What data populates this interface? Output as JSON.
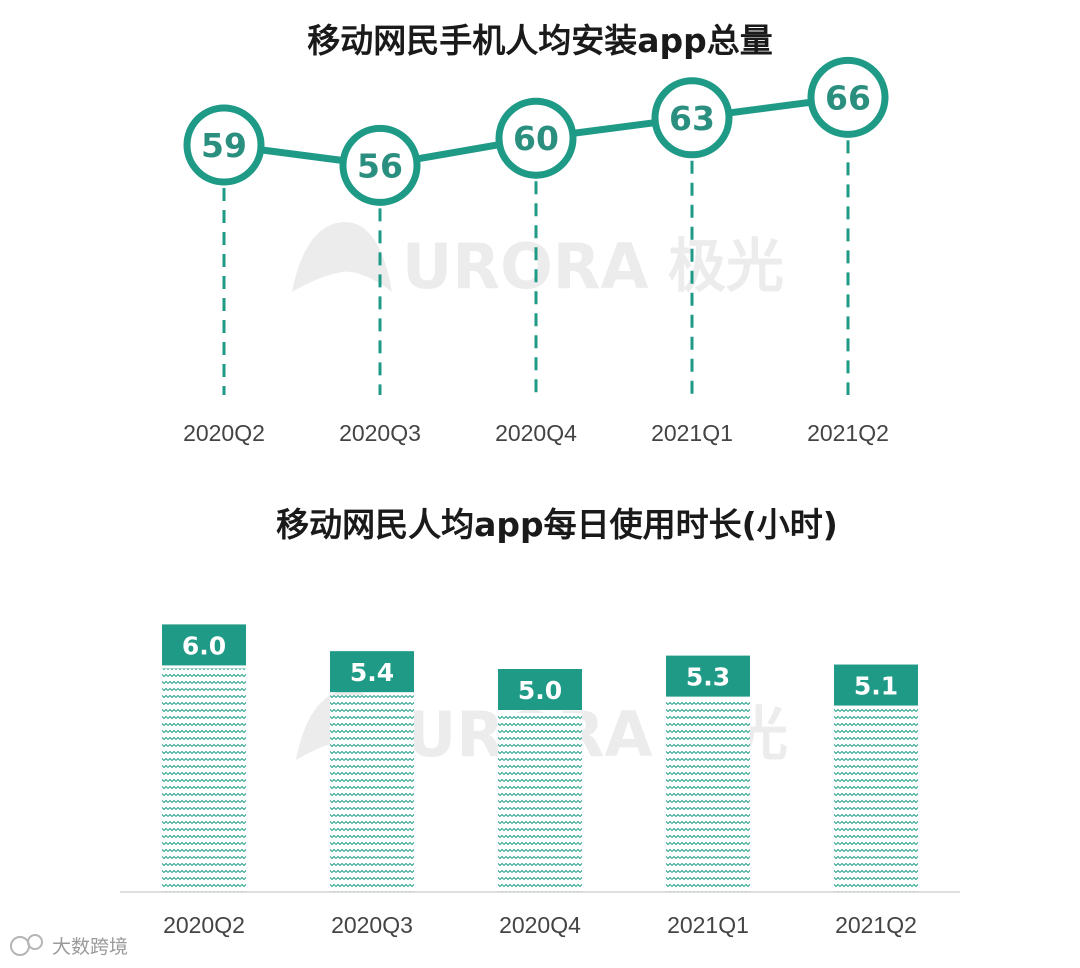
{
  "chart_data": [
    {
      "type": "line",
      "title": "移动网民手机人均安装app总量",
      "categories": [
        "2020Q2",
        "2020Q3",
        "2020Q4",
        "2021Q1",
        "2021Q2"
      ],
      "values": [
        59,
        56,
        60,
        63,
        66
      ],
      "data_labels": [
        "59",
        "56",
        "60",
        "63",
        "66"
      ],
      "grid": false,
      "legend": "none",
      "color": "#1e9a86"
    },
    {
      "type": "bar",
      "title": "移动网民人均app每日使用时长(小时)",
      "categories": [
        "2020Q2",
        "2020Q3",
        "2020Q4",
        "2021Q1",
        "2021Q2"
      ],
      "values": [
        6.0,
        5.4,
        5.0,
        5.3,
        5.1
      ],
      "data_labels": [
        "6.0",
        "5.4",
        "5.0",
        "5.3",
        "5.1"
      ],
      "grid": false,
      "legend": "none",
      "color": "#1e9a86"
    }
  ],
  "watermark": {
    "brand": "URORA",
    "brand_cn": "极光"
  },
  "footer": {
    "source": "大数跨境"
  }
}
